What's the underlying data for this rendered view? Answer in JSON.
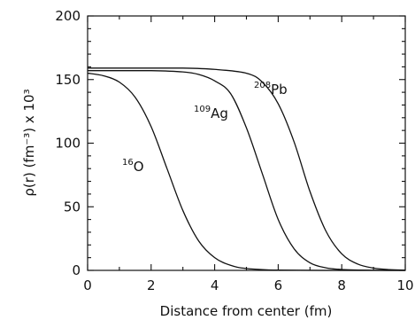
{
  "chart_data": {
    "type": "line",
    "xlabel": "Distance from center (fm)",
    "ylabel": "ρ(r)  (fm⁻³) x 10³",
    "xlim": [
      0,
      10
    ],
    "ylim": [
      0,
      200
    ],
    "xticks": [
      0,
      2,
      4,
      6,
      8,
      10
    ],
    "yticks": [
      0,
      50,
      100,
      150,
      200
    ],
    "grid": false,
    "series": [
      {
        "name": "16O",
        "label_sup": "16",
        "label_base": "O",
        "x": [
          0,
          0.5,
          1.0,
          1.5,
          2.0,
          2.5,
          3.0,
          3.5,
          4.0,
          4.5,
          5.0,
          6.0,
          8.0,
          10.0
        ],
        "values": [
          155,
          153,
          148,
          136,
          113,
          80,
          47,
          23,
          10,
          4,
          1.5,
          0.2,
          0,
          0
        ]
      },
      {
        "name": "109Ag",
        "label_sup": "109",
        "label_base": "Ag",
        "x": [
          0,
          1,
          2,
          3,
          3.5,
          4.0,
          4.5,
          5.0,
          5.5,
          6.0,
          6.5,
          7.0,
          7.5,
          8.0,
          9.0,
          10.0
        ],
        "values": [
          157,
          157,
          157,
          156,
          154,
          149,
          139,
          112,
          76,
          40,
          17,
          6,
          2,
          0.7,
          0.1,
          0
        ]
      },
      {
        "name": "208Pb",
        "label_sup": "208",
        "label_base": "Pb",
        "x": [
          0,
          1,
          2,
          3,
          4,
          5.0,
          5.5,
          6.0,
          6.5,
          7.0,
          7.5,
          8.0,
          8.5,
          9.0,
          9.5,
          10.0
        ],
        "values": [
          159,
          159,
          159,
          159,
          158,
          155,
          148,
          131,
          101,
          62,
          31,
          13,
          5,
          1.8,
          0.6,
          0.2
        ]
      }
    ]
  }
}
